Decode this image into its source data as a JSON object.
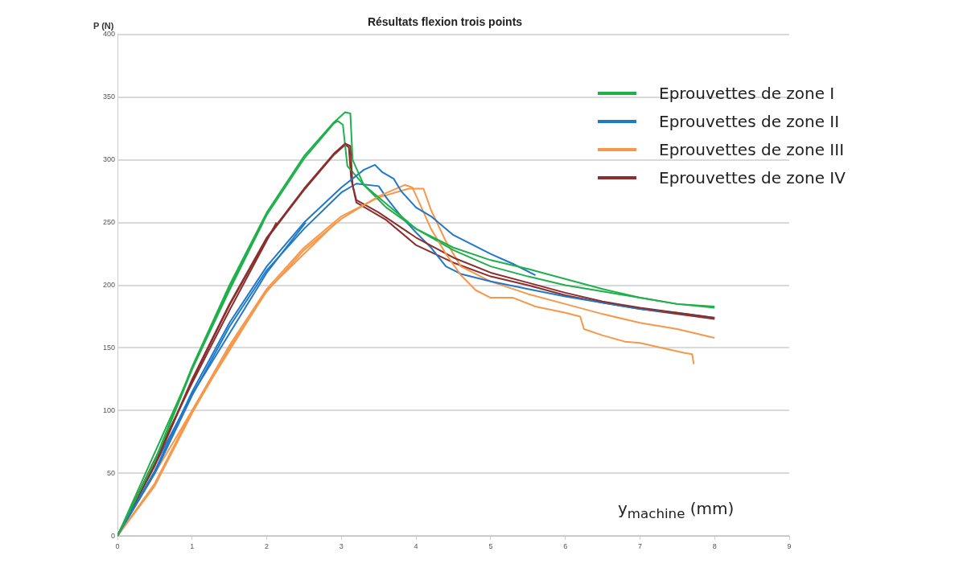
{
  "chart_data": {
    "type": "line",
    "title": "Résultats flexion trois points",
    "xlabel": "y$_{machine}$ (mm)",
    "ylabel": "P (N)",
    "xlim": [
      0,
      9
    ],
    "xticks": [
      0,
      1,
      2,
      3,
      4,
      5,
      6,
      7,
      8,
      9
    ],
    "ylim": [
      0,
      400
    ],
    "yticks": [
      0,
      50,
      100,
      150,
      200,
      250,
      300,
      350,
      400
    ],
    "grid": "y",
    "legend": "top right",
    "marker": "none",
    "line_style": "solid",
    "series": [
      {
        "name": "Eprouvettes de zone I",
        "color": "#1fb04c",
        "x": [
          0,
          0.5,
          1,
          1.5,
          2,
          2.5,
          2.9,
          3.05,
          3.12,
          3.15,
          3.3,
          3.6,
          4,
          4.5,
          5,
          5.5,
          6,
          6.5,
          7,
          7.5,
          8
        ],
        "values": [
          0,
          60,
          135,
          200,
          258,
          303,
          330,
          338,
          337,
          300,
          280,
          265,
          245,
          230,
          220,
          213,
          205,
          197,
          190,
          185,
          183
        ]
      },
      {
        "name": "Eprouvettes de zone II",
        "color": "#1f78c8",
        "x": [
          0,
          0.5,
          1,
          1.5,
          2,
          2.5,
          3,
          3.3,
          3.45,
          3.55,
          3.7,
          3.8,
          4,
          4.2,
          4.5,
          5,
          5.3,
          5.6
        ],
        "values": [
          0,
          52,
          115,
          170,
          215,
          250,
          278,
          292,
          296,
          290,
          285,
          275,
          262,
          255,
          240,
          225,
          217,
          208
        ]
      },
      {
        "name": "Eprouvettes de zone III",
        "color": "#f7974a",
        "x": [
          0,
          0.5,
          1,
          1.5,
          2,
          2.5,
          3,
          3.5,
          3.85,
          3.95,
          4.05,
          4.2,
          4.4,
          4.6,
          4.8,
          5,
          5.3,
          5.6,
          6,
          6.2,
          6.25,
          6.5,
          6.8,
          7,
          7.3,
          7.6,
          7.7,
          7.72
        ],
        "values": [
          0,
          40,
          98,
          150,
          195,
          228,
          253,
          271,
          280,
          278,
          265,
          245,
          225,
          208,
          196,
          190,
          190,
          183,
          178,
          175,
          165,
          160,
          155,
          154,
          150,
          146,
          145,
          137
        ]
      },
      {
        "name": "Eprouvettes de zone IV",
        "color": "#8b2e2e",
        "x": [
          0,
          0.5,
          1,
          1.5,
          2,
          2.5,
          2.9,
          3.05,
          3.12,
          3.15,
          3.2,
          3.5,
          4,
          4.5,
          5,
          5.5,
          6,
          6.5,
          7,
          7.5,
          8
        ],
        "values": [
          0,
          57,
          125,
          185,
          238,
          277,
          305,
          313,
          311,
          280,
          268,
          258,
          238,
          222,
          210,
          202,
          194,
          187,
          182,
          178,
          174
        ]
      },
      {
        "color": "#1fb04c",
        "x": [
          0,
          0.5,
          1,
          1.5,
          2,
          2.5,
          2.9,
          2.95,
          3.02,
          3.08,
          3.3,
          3.6,
          4,
          4.5,
          5,
          5.5,
          6,
          6.5,
          7,
          7.5,
          8
        ],
        "values": [
          0,
          59,
          133,
          198,
          256,
          301,
          329,
          331,
          328,
          295,
          280,
          262,
          245,
          228,
          215,
          207,
          200,
          195,
          190,
          185,
          182
        ]
      },
      {
        "color": "#1f78c8",
        "x": [
          0,
          0.5,
          1,
          1.5,
          2,
          2.5,
          3,
          3.2,
          3.5,
          3.6,
          3.8,
          4,
          4.2,
          4.4,
          4.6,
          5,
          5.5,
          6,
          6.5,
          7,
          7.5,
          8
        ],
        "values": [
          0,
          50,
          112,
          167,
          212,
          245,
          274,
          281,
          279,
          270,
          255,
          242,
          230,
          215,
          209,
          203,
          197,
          191,
          186,
          181,
          178,
          174
        ]
      },
      {
        "color": "#f7974a",
        "x": [
          0,
          0.5,
          1,
          1.5,
          2,
          2.5,
          3,
          3.5,
          3.9,
          4.1,
          4.2,
          4.4,
          4.6,
          5,
          5.5,
          6,
          6.5,
          7,
          7.5,
          8
        ],
        "values": [
          0,
          42,
          100,
          152,
          197,
          230,
          255,
          270,
          277,
          277,
          260,
          235,
          215,
          203,
          193,
          185,
          177,
          170,
          165,
          158
        ]
      },
      {
        "color": "#8b2e2e",
        "x": [
          0,
          0.5,
          1,
          1.5,
          2,
          2.5,
          2.9,
          3.05,
          3.1,
          3.13,
          3.2,
          3.6,
          4,
          4.5,
          5,
          5.5,
          6,
          6.5,
          7,
          7.5,
          8
        ],
        "values": [
          0,
          56,
          124,
          184,
          237,
          276,
          304,
          312,
          310,
          285,
          266,
          252,
          232,
          218,
          207,
          200,
          192,
          186,
          181,
          177,
          173
        ]
      },
      {
        "color": "#1fb04c",
        "x": [
          0,
          1,
          1.5,
          1.95
        ],
        "values": [
          0,
          133,
          196,
          250
        ]
      },
      {
        "color": "#1f78c8",
        "x": [
          0,
          1,
          2,
          2.52
        ],
        "values": [
          0,
          113,
          210,
          250
        ]
      },
      {
        "color": "#f7974a",
        "x": [
          0,
          1,
          2,
          2.93
        ],
        "values": [
          0,
          100,
          196,
          250
        ]
      },
      {
        "color": "#8b2e2e",
        "x": [
          0,
          1,
          1.5,
          2.13
        ],
        "values": [
          0,
          122,
          180,
          250
        ]
      }
    ]
  }
}
